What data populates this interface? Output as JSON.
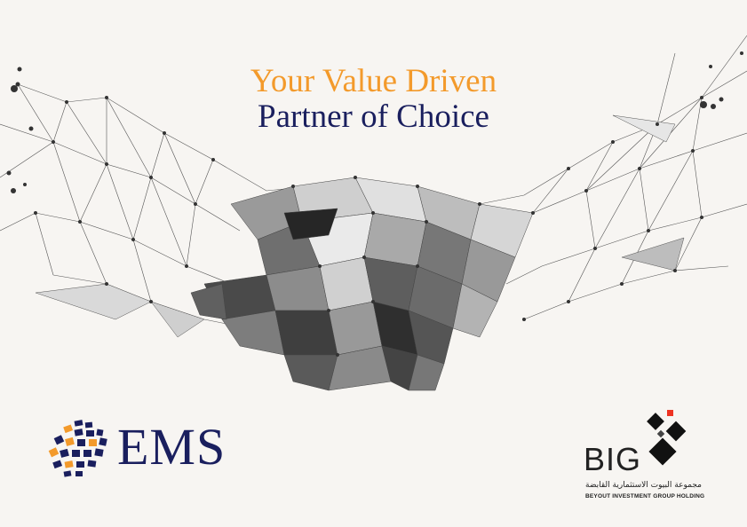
{
  "headline": {
    "line1": "Your Value Driven",
    "line2": "Partner of Choice"
  },
  "colors": {
    "accent_orange": "#f39a2b",
    "navy": "#1a1f5e",
    "background": "#f7f5f2"
  },
  "logos": {
    "ems": {
      "text": "EMS",
      "icon": "ems-globe-icon"
    },
    "big": {
      "text": "BIG",
      "arabic_line": "مجموعة البيوت الاستثمارية القابضة",
      "english_line": "BEYOUT INVESTMENT GROUP HOLDING",
      "icon": "big-cubes-icon"
    }
  },
  "illustration": {
    "icon": "polygon-handshake-icon"
  }
}
